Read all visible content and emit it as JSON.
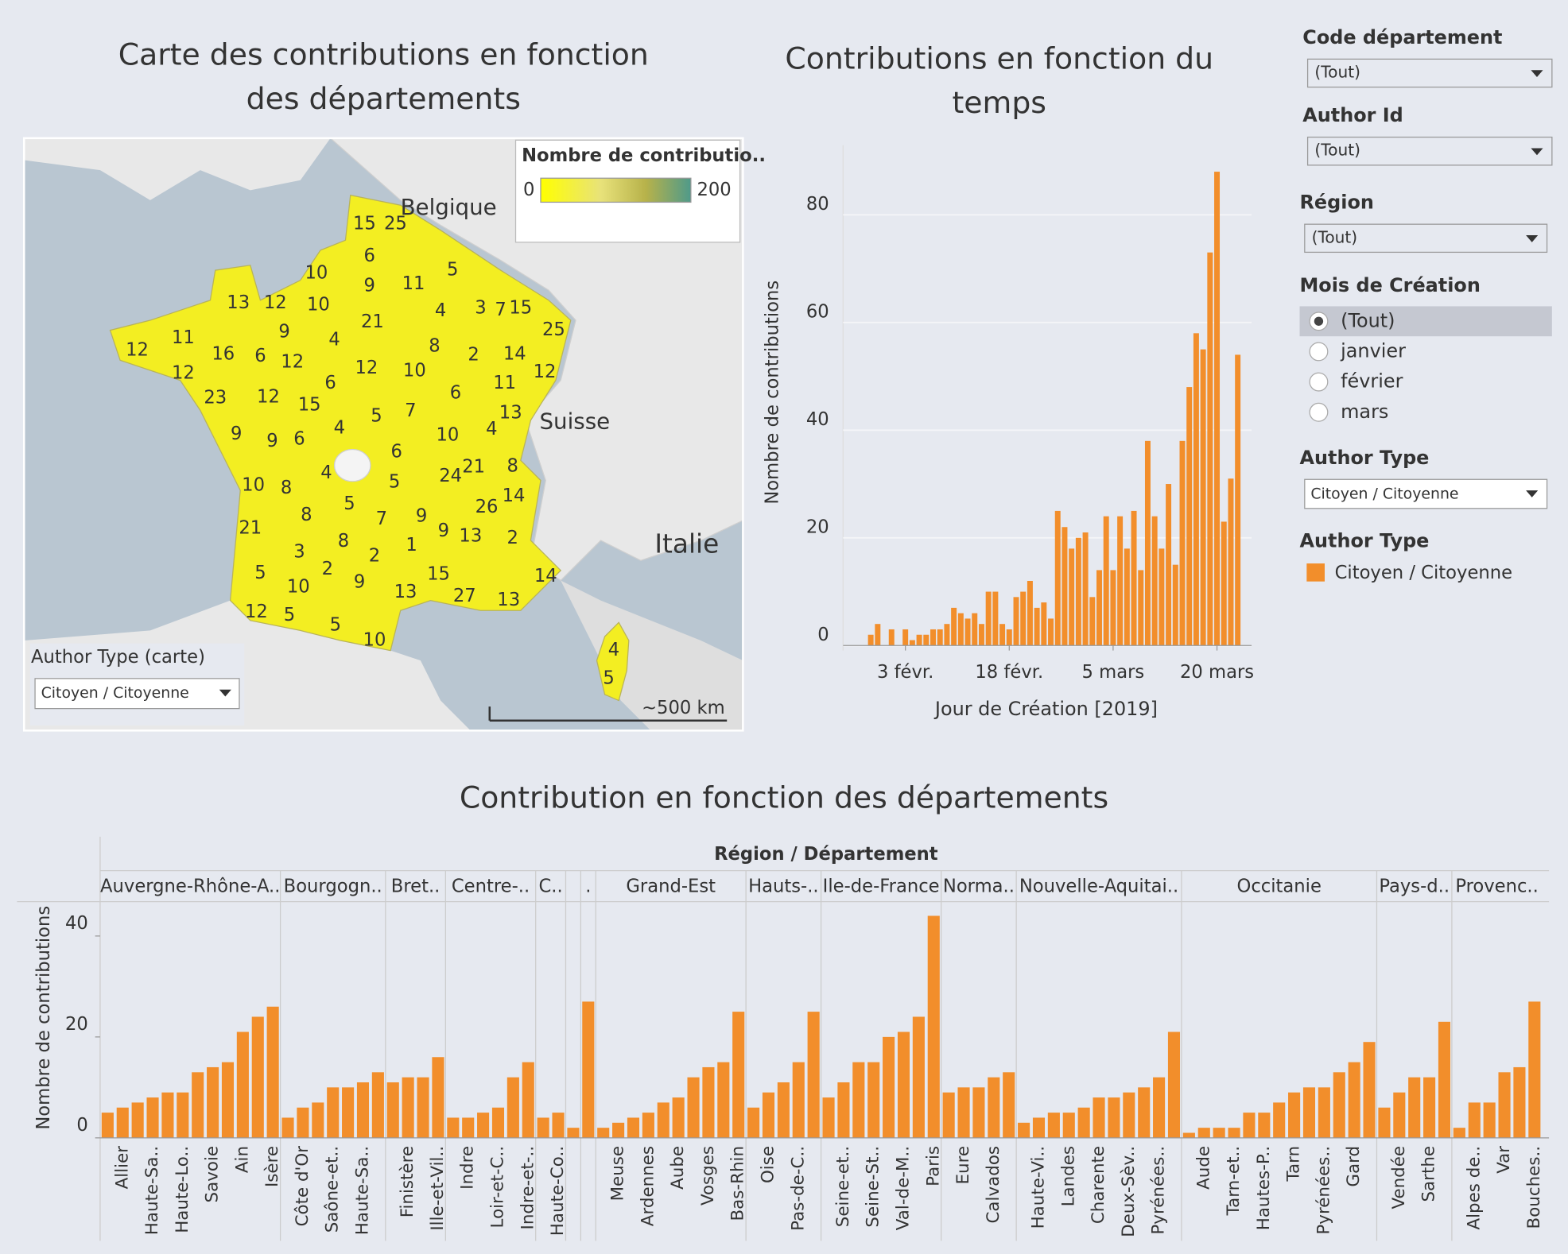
{
  "map": {
    "title": "Carte des contributions en fonction des départements",
    "legend_title": "Nombre de contributio..",
    "scale_min": 0,
    "scale_max": 200,
    "labels": [
      15,
      25,
      6,
      5,
      10,
      9,
      11,
      13,
      12,
      10,
      3,
      7,
      15,
      25,
      4,
      9,
      21,
      4,
      8,
      2,
      14,
      12,
      11,
      16,
      6,
      12,
      12,
      10,
      12,
      6,
      12,
      11,
      23,
      12,
      15,
      5,
      7,
      6,
      13,
      9,
      9,
      6,
      4,
      10,
      4,
      6,
      21,
      24,
      8,
      4,
      5,
      10,
      8,
      14,
      5,
      26,
      8,
      7,
      9,
      21,
      8,
      9,
      13,
      1,
      2,
      3,
      2,
      2,
      5,
      9,
      10,
      15,
      14,
      13,
      27,
      13,
      12,
      5,
      5,
      10,
      4,
      5
    ],
    "places": [
      "Belgique",
      "Suisse",
      "Italie"
    ],
    "scale_bar": "~500 km",
    "filter": {
      "label": "Author Type (carte)",
      "value": "Citoyen / Citoyenne"
    }
  },
  "chart_data": [
    {
      "type": "bar",
      "title": "Contributions en fonction du temps",
      "x_label": "Jour de Création [2019]",
      "y_label": "Nombre de contributions",
      "color": "#f28e2b",
      "x": [
        "2019-01-29",
        "2019-01-30",
        "2019-01-31",
        "2019-02-01",
        "2019-02-02",
        "2019-02-03",
        "2019-02-04",
        "2019-02-05",
        "2019-02-06",
        "2019-02-07",
        "2019-02-08",
        "2019-02-09",
        "2019-02-10",
        "2019-02-11",
        "2019-02-12",
        "2019-02-13",
        "2019-02-14",
        "2019-02-15",
        "2019-02-16",
        "2019-02-17",
        "2019-02-18",
        "2019-02-19",
        "2019-02-20",
        "2019-02-21",
        "2019-02-22",
        "2019-02-23",
        "2019-02-24",
        "2019-02-25",
        "2019-02-26",
        "2019-02-27",
        "2019-02-28",
        "2019-03-01",
        "2019-03-02",
        "2019-03-03",
        "2019-03-04",
        "2019-03-05",
        "2019-03-06",
        "2019-03-07",
        "2019-03-08",
        "2019-03-09",
        "2019-03-10",
        "2019-03-11",
        "2019-03-12",
        "2019-03-13",
        "2019-03-14",
        "2019-03-15",
        "2019-03-16",
        "2019-03-17",
        "2019-03-18",
        "2019-03-19",
        "2019-03-20",
        "2019-03-21",
        "2019-03-22",
        "2019-03-23"
      ],
      "values": [
        2,
        4,
        0,
        3,
        0,
        3,
        1,
        2,
        2,
        3,
        3,
        4,
        7,
        6,
        5,
        6,
        4,
        10,
        10,
        4,
        3,
        9,
        10,
        12,
        7,
        8,
        5,
        25,
        22,
        18,
        20,
        21,
        9,
        14,
        24,
        14,
        24,
        18,
        25,
        14,
        38,
        24,
        18,
        30,
        15,
        38,
        48,
        58,
        55,
        73,
        88,
        23,
        31,
        54
      ],
      "xlim": [
        "2019-01-25",
        "2019-03-25"
      ],
      "xticks": [
        {
          "value": "2019-02-03",
          "label": "3 févr."
        },
        {
          "value": "2019-02-18",
          "label": "18 févr."
        },
        {
          "value": "2019-03-05",
          "label": "5 mars"
        },
        {
          "value": "2019-03-20",
          "label": "20 mars"
        }
      ],
      "ylim": [
        0,
        92
      ],
      "yticks": [
        0,
        20,
        40,
        60,
        80
      ],
      "grid": true
    },
    {
      "type": "grouped_bar",
      "title": "Contribution en fonction des départements",
      "header": "Région / Département",
      "y_label": "Nombre de contributions",
      "color": "#f28e2b",
      "ylim": [
        0,
        47
      ],
      "yticks": [
        0,
        20,
        40
      ],
      "groups": [
        {
          "name": "Auvergne-Rhône-A..",
          "categories": [
            null,
            "Allier",
            null,
            "Haute-Sa..",
            null,
            "Haute-Lo..",
            null,
            "Savoie",
            null,
            "Ain",
            null,
            "Isère"
          ],
          "values": [
            5,
            6,
            7,
            8,
            9,
            9,
            13,
            14,
            15,
            21,
            24,
            26
          ]
        },
        {
          "name": "Bourgogn..",
          "categories": [
            null,
            "Côte d'Or",
            null,
            "Saône-et..",
            null,
            "Haute-Sa..",
            null
          ],
          "values": [
            4,
            6,
            7,
            10,
            10,
            11,
            13
          ]
        },
        {
          "name": "Bret..",
          "categories": [
            null,
            "Finistère",
            null,
            "Ille-et-Vil.."
          ],
          "values": [
            11,
            12,
            12,
            16
          ]
        },
        {
          "name": "Centre-..",
          "categories": [
            null,
            "Indre",
            null,
            "Loir-et-C..",
            null,
            "Indre-et-.."
          ],
          "values": [
            4,
            4,
            5,
            6,
            12,
            15
          ]
        },
        {
          "name": "C..",
          "categories": [
            null,
            "Haute-Co.."
          ],
          "values": [
            4,
            5
          ]
        },
        {
          "name": null,
          "categories": [
            null
          ],
          "values": [
            2
          ]
        },
        {
          "name": ".",
          "categories": [
            null
          ],
          "values": [
            27
          ]
        },
        {
          "name": "Grand-Est",
          "categories": [
            null,
            "Meuse",
            null,
            "Ardennes",
            null,
            "Aube",
            null,
            "Vosges",
            null,
            "Bas-Rhin"
          ],
          "values": [
            2,
            3,
            4,
            5,
            7,
            8,
            12,
            14,
            15,
            25
          ]
        },
        {
          "name": "Hauts-..",
          "categories": [
            null,
            "Oise",
            null,
            "Pas-de-C..",
            null
          ],
          "values": [
            6,
            9,
            11,
            15,
            25
          ]
        },
        {
          "name": "Ile-de-France",
          "categories": [
            null,
            "Seine-et..",
            null,
            "Seine-St..",
            null,
            "Val-de-M..",
            null,
            "Paris"
          ],
          "values": [
            8,
            11,
            15,
            15,
            20,
            21,
            24,
            44
          ]
        },
        {
          "name": "Norma..",
          "categories": [
            null,
            "Eure",
            null,
            "Calvados",
            null
          ],
          "values": [
            9,
            10,
            10,
            12,
            13
          ]
        },
        {
          "name": "Nouvelle-Aquitai..",
          "categories": [
            null,
            "Haute-Vi..",
            null,
            "Landes",
            null,
            "Charente",
            null,
            "Deux-Sèv..",
            null,
            "Pyrénées..",
            null
          ],
          "values": [
            3,
            4,
            5,
            5,
            6,
            8,
            8,
            9,
            10,
            12,
            21
          ]
        },
        {
          "name": "Occitanie",
          "categories": [
            null,
            "Aude",
            null,
            "Tarn-et..",
            null,
            "Hautes-P..",
            null,
            "Tarn",
            null,
            "Pyrénées..",
            null,
            "Gard",
            null
          ],
          "values": [
            1,
            2,
            2,
            2,
            5,
            5,
            7,
            9,
            10,
            10,
            13,
            15,
            19
          ]
        },
        {
          "name": "Pays-d..",
          "categories": [
            null,
            "Vendée",
            null,
            "Sarthe",
            null
          ],
          "values": [
            6,
            9,
            12,
            12,
            23
          ]
        },
        {
          "name": "Provenc..",
          "categories": [
            null,
            "Alpes de..",
            null,
            "Var",
            null,
            "Bouches.."
          ],
          "values": [
            2,
            7,
            7,
            13,
            14,
            27
          ]
        }
      ]
    }
  ],
  "filters": [
    {
      "label": "Code département",
      "value": "(Tout)"
    },
    {
      "label": "Author Id",
      "value": "(Tout)"
    },
    {
      "label": "Région",
      "value": "(Tout)"
    }
  ],
  "month_filter": {
    "label": "Mois de Création",
    "options": [
      "(Tout)",
      "janvier",
      "février",
      "mars"
    ]
  },
  "author_filter": {
    "label": "Author Type",
    "value": "Citoyen / Citoyenne"
  },
  "color_legend": {
    "title": "Author Type",
    "items": [
      "Citoyen / Citoyenne"
    ]
  }
}
